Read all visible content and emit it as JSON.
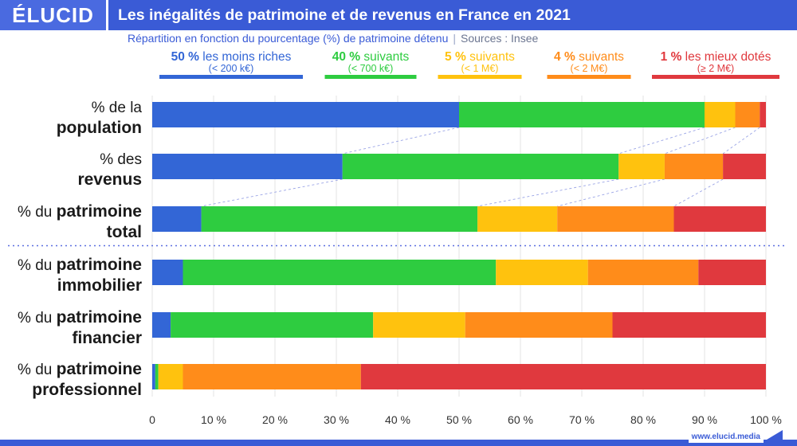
{
  "header": {
    "logo": "ÉLUCID",
    "title": "Les inégalités de patrimoine et de revenus en France en 2021",
    "subtitle": "Répartition en fonction du pourcentage (%) de patrimoine détenu",
    "source": "Sources : Insee"
  },
  "footer": {
    "url": "www.elucid.media"
  },
  "chart_data": {
    "type": "bar",
    "orientation": "horizontal",
    "stacked": true,
    "categories": [
      {
        "pre": "% de la",
        "main": "population"
      },
      {
        "pre": "% des",
        "main": "revenus"
      },
      {
        "pre": "% du",
        "main": "patrimoine",
        "line2": "total"
      },
      {
        "pre": "% du",
        "main": "patrimoine",
        "line2": "immobilier"
      },
      {
        "pre": "% du",
        "main": "patrimoine",
        "line2": "financier"
      },
      {
        "pre": "% du",
        "main": "patrimoine",
        "line2": "professionnel"
      }
    ],
    "series": [
      {
        "name": "50 % les moins riches",
        "bold": "50 %",
        "rest": " les moins riches",
        "sub": "(< 200 k€)",
        "color": "#3366d6",
        "values": [
          50,
          31,
          8,
          5,
          3,
          0.5
        ]
      },
      {
        "name": "40 % suivants",
        "bold": "40 %",
        "rest": " suivants",
        "sub": "(< 700 k€)",
        "color": "#2ecc40",
        "values": [
          40,
          45,
          45,
          51,
          33,
          0.5
        ]
      },
      {
        "name": "5 % suivants",
        "bold": "5 %",
        "rest": " suivants",
        "sub": "(< 1 M€)",
        "color": "#ffc20e",
        "values": [
          5,
          7.5,
          13,
          15,
          15,
          4
        ]
      },
      {
        "name": "4 % suivants",
        "bold": "4 %",
        "rest": " suivants",
        "sub": "(< 2 M€)",
        "color": "#ff8c1a",
        "values": [
          4,
          9.5,
          19,
          18,
          24,
          29
        ]
      },
      {
        "name": "1 % les mieux dotés",
        "bold": "1 %",
        "rest": " les mieux dotés",
        "sub": "(≥ 2 M€)",
        "color": "#e0393e",
        "values": [
          1,
          7,
          15,
          11,
          25,
          66
        ]
      }
    ],
    "xlim": [
      0,
      100
    ],
    "xticks": [
      "0",
      "10 %",
      "20 %",
      "30 %",
      "40 %",
      "50 %",
      "60 %",
      "70 %",
      "80 %",
      "90 %",
      "100 %"
    ],
    "grid": true,
    "legend_position": "top",
    "separator_after_category": 2
  }
}
